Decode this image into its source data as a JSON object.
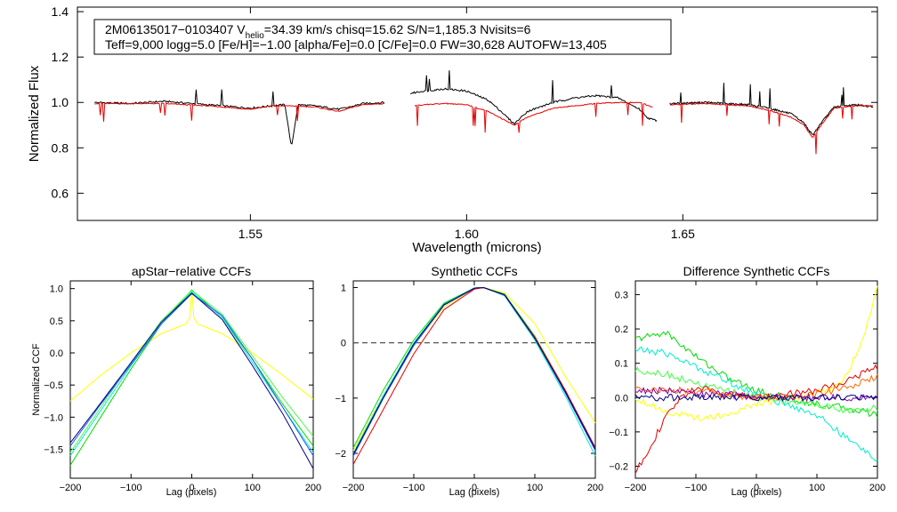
{
  "chart_data": [
    {
      "type": "line",
      "id": "spectrum",
      "title": "",
      "xlabel": "Wavelength (microns)",
      "ylabel": "Normalized Flux",
      "xlim": [
        1.51,
        1.695
      ],
      "ylim": [
        0.48,
        1.42
      ],
      "xticks": [
        1.55,
        1.6,
        1.65
      ],
      "xtick_labels": [
        "1.55",
        "1.60",
        "1.65"
      ],
      "yticks": [
        0.6,
        0.8,
        1.0,
        1.2,
        1.4
      ],
      "ytick_labels": [
        "0.6",
        "0.8",
        "1.0",
        "1.2",
        "1.4"
      ],
      "info_line1_pre": "2M06135017−0103407  V",
      "info_line1_sub": "helio",
      "info_line1_post": "=34.39 km/s  chisq=15.62  S/N=1,185.3  Nvisits=6",
      "info_line2": "Teff=9,000 logg=5.0 [Fe/H]=−1.00 [alpha/Fe]=0.0 [C/Fe]=0.0 FW=30,628 AUTOFW=13,405",
      "series": [
        {
          "name": "observed",
          "color": "#000000",
          "chips": [
            {
              "x": [
                1.514,
                1.522,
                1.53,
                1.54,
                1.55,
                1.555,
                1.558,
                1.5595,
                1.561,
                1.565,
                1.5705,
                1.573,
                1.576,
                1.581
              ],
              "y": [
                1.0,
                0.995,
                1.005,
                0.99,
                0.975,
                0.985,
                0.99,
                0.8,
                0.99,
                0.985,
                0.97,
                0.98,
                0.995,
                1.0
              ]
            },
            {
              "x": [
                1.587,
                1.59,
                1.595,
                1.6,
                1.605,
                1.608,
                1.611,
                1.614,
                1.62,
                1.625,
                1.63,
                1.635,
                1.64,
                1.642,
                1.644
              ],
              "y": [
                1.04,
                1.05,
                1.06,
                1.05,
                1.01,
                0.96,
                0.905,
                0.96,
                1.0,
                1.02,
                1.03,
                1.02,
                0.97,
                0.93,
                0.92
              ]
            },
            {
              "x": [
                1.647,
                1.655,
                1.66,
                1.665,
                1.67,
                1.675,
                1.678,
                1.68,
                1.682,
                1.685,
                1.69,
                1.694
              ],
              "y": [
                0.995,
                1.0,
                0.995,
                0.99,
                0.975,
                0.95,
                0.91,
                0.855,
                0.91,
                0.98,
                0.99,
                0.98
              ]
            }
          ]
        },
        {
          "name": "synthetic",
          "color": "#e60000",
          "chips": [
            {
              "x": [
                1.514,
                1.522,
                1.53,
                1.54,
                1.55,
                1.555,
                1.5595,
                1.565,
                1.5705,
                1.573,
                1.576,
                1.581
              ],
              "y": [
                0.995,
                0.995,
                0.995,
                0.985,
                0.97,
                0.985,
                0.985,
                0.98,
                0.96,
                0.975,
                0.99,
                0.995
              ]
            },
            {
              "x": [
                1.588,
                1.59,
                1.595,
                1.6,
                1.605,
                1.608,
                1.611,
                1.614,
                1.62,
                1.625,
                1.63,
                1.635,
                1.64,
                1.643
              ],
              "y": [
                0.985,
                0.99,
                0.995,
                0.99,
                0.96,
                0.93,
                0.9,
                0.935,
                0.975,
                0.985,
                0.995,
                1.0,
                1.0,
                0.98
              ]
            },
            {
              "x": [
                1.647,
                1.655,
                1.66,
                1.665,
                1.67,
                1.675,
                1.678,
                1.68,
                1.682,
                1.685,
                1.69,
                1.694
              ],
              "y": [
                0.99,
                0.995,
                0.99,
                0.985,
                0.965,
                0.935,
                0.9,
                0.845,
                0.9,
                0.975,
                0.985,
                0.985
              ]
            }
          ]
        }
      ]
    },
    {
      "type": "line",
      "id": "apstar_ccf",
      "title": "apStar−relative CCFs",
      "xlabel": "Lag (pixels)",
      "ylabel": "Normalized CCF",
      "xlim": [
        -200,
        200
      ],
      "ylim": [
        -1.95,
        1.12
      ],
      "xticks": [
        -200,
        -100,
        0,
        100,
        200
      ],
      "xtick_labels": [
        "−200",
        "−100",
        "0",
        "100",
        "200"
      ],
      "yticks": [
        -1.5,
        -1.0,
        -0.5,
        0.0,
        0.5,
        1.0
      ],
      "ytick_labels": [
        "−1.5",
        "−1.0",
        "−0.5",
        "0.0",
        "0.5",
        "1.0"
      ],
      "series": [
        {
          "name": "yellow",
          "color": "#ffff00",
          "x": [
            -200,
            -150,
            -100,
            -50,
            -10,
            -3,
            0,
            3,
            10,
            50,
            100,
            150,
            200
          ],
          "y": [
            -0.75,
            -0.35,
            0.0,
            0.3,
            0.45,
            0.55,
            0.98,
            0.55,
            0.45,
            0.3,
            0.0,
            -0.35,
            -0.72
          ]
        },
        {
          "name": "green",
          "color": "#00dd00",
          "x": [
            -200,
            -150,
            -100,
            -50,
            0,
            50,
            100,
            150,
            200
          ],
          "y": [
            -1.75,
            -1.0,
            -0.25,
            0.45,
            0.98,
            0.55,
            -0.1,
            -0.8,
            -1.45
          ]
        },
        {
          "name": "light-green",
          "color": "#44ff44",
          "x": [
            -200,
            -150,
            -100,
            -50,
            0,
            50,
            100,
            150,
            200
          ],
          "y": [
            -1.55,
            -0.85,
            -0.15,
            0.5,
            0.97,
            0.6,
            -0.05,
            -0.7,
            -1.3
          ]
        },
        {
          "name": "cyan",
          "color": "#00eecc",
          "x": [
            -200,
            -150,
            -100,
            -50,
            0,
            50,
            100,
            150,
            200
          ],
          "y": [
            -1.6,
            -0.9,
            -0.2,
            0.45,
            0.95,
            0.55,
            -0.15,
            -0.85,
            -1.55
          ]
        },
        {
          "name": "blue",
          "color": "#2255ff",
          "x": [
            -200,
            -150,
            -100,
            -50,
            0,
            50,
            100,
            150,
            200
          ],
          "y": [
            -1.45,
            -0.8,
            -0.18,
            0.45,
            0.92,
            0.58,
            -0.1,
            -0.85,
            -1.6
          ]
        },
        {
          "name": "navy",
          "color": "#000080",
          "x": [
            -200,
            -150,
            -100,
            -50,
            0,
            50,
            100,
            150,
            200
          ],
          "y": [
            -1.4,
            -0.78,
            -0.15,
            0.48,
            0.93,
            0.52,
            -0.2,
            -0.95,
            -1.8
          ]
        }
      ]
    },
    {
      "type": "line",
      "id": "synthetic_ccf",
      "title": "Synthetic CCFs",
      "xlabel": "Lag (pixels)",
      "ylabel": "",
      "xlim": [
        -200,
        200
      ],
      "ylim": [
        -2.45,
        1.12
      ],
      "xticks": [
        -200,
        -100,
        0,
        100,
        200
      ],
      "xtick_labels": [
        "−200",
        "−100",
        "0",
        "100",
        "200"
      ],
      "yticks": [
        -2,
        -1,
        0,
        1
      ],
      "ytick_labels": [
        "−2",
        "−1",
        "0",
        "1"
      ],
      "reference_line": {
        "y": 0,
        "color": "#555555",
        "style": "dashed"
      },
      "series": [
        {
          "name": "yellow",
          "color": "#ffff00",
          "x": [
            -200,
            -150,
            -100,
            -50,
            0,
            15,
            50,
            100,
            150,
            200
          ],
          "y": [
            -1.95,
            -0.95,
            -0.05,
            0.65,
            0.98,
            1.0,
            0.9,
            0.35,
            -0.6,
            -1.45
          ]
        },
        {
          "name": "green",
          "color": "#00dd00",
          "x": [
            -200,
            -150,
            -100,
            -50,
            0,
            15,
            50,
            100,
            150,
            200
          ],
          "y": [
            -1.9,
            -0.85,
            0.05,
            0.72,
            0.99,
            1.0,
            0.88,
            0.12,
            -0.85,
            -1.9
          ]
        },
        {
          "name": "cyan",
          "color": "#00eecc",
          "x": [
            -200,
            -150,
            -100,
            -50,
            0,
            15,
            50,
            100,
            150,
            200
          ],
          "y": [
            -2.0,
            -0.95,
            0.0,
            0.7,
            0.99,
            1.0,
            0.85,
            0.05,
            -0.95,
            -2.05
          ]
        },
        {
          "name": "blue",
          "color": "#2255ff",
          "x": [
            -200,
            -150,
            -100,
            -50,
            0,
            15,
            50,
            100,
            150,
            200
          ],
          "y": [
            -2.05,
            -1.0,
            -0.05,
            0.68,
            0.98,
            1.0,
            0.86,
            0.08,
            -0.9,
            -1.95
          ]
        },
        {
          "name": "red",
          "color": "#e60000",
          "x": [
            -200,
            -150,
            -100,
            -50,
            0,
            15,
            50,
            100,
            150,
            200
          ],
          "y": [
            -2.2,
            -1.2,
            -0.2,
            0.6,
            0.97,
            1.0,
            0.87,
            0.1,
            -0.85,
            -1.9
          ]
        },
        {
          "name": "navy",
          "color": "#000080",
          "x": [
            -200,
            -150,
            -100,
            -50,
            0,
            15,
            50,
            100,
            150,
            200
          ],
          "y": [
            -2.02,
            -0.98,
            -0.02,
            0.69,
            0.99,
            1.0,
            0.87,
            0.08,
            -0.88,
            -1.92
          ]
        }
      ]
    },
    {
      "type": "line",
      "id": "difference_ccf",
      "title": "Difference Synthetic CCFs",
      "xlabel": "Lag (pixels)",
      "ylabel": "",
      "xlim": [
        -200,
        200
      ],
      "ylim": [
        -0.235,
        0.34
      ],
      "xticks": [
        -200,
        -100,
        0,
        100,
        200
      ],
      "xtick_labels": [
        "−200",
        "−100",
        "0",
        "100",
        "200"
      ],
      "yticks": [
        -0.2,
        -0.1,
        0.0,
        0.1,
        0.2,
        0.3
      ],
      "ytick_labels": [
        "−0.2",
        "−0.1",
        "0.0",
        "0.1",
        "0.2",
        "0.3"
      ],
      "series": [
        {
          "name": "yellow",
          "color": "#ffff00",
          "x": [
            -200,
            -150,
            -100,
            -50,
            0,
            50,
            100,
            130,
            150,
            175,
            200
          ],
          "y": [
            0.0,
            -0.04,
            -0.06,
            -0.05,
            -0.02,
            0.0,
            0.01,
            0.03,
            0.07,
            0.17,
            0.32
          ]
        },
        {
          "name": "green",
          "color": "#00dd00",
          "x": [
            -200,
            -150,
            -100,
            -50,
            0,
            50,
            100,
            150,
            200
          ],
          "y": [
            0.17,
            0.19,
            0.12,
            0.06,
            0.02,
            0.0,
            -0.02,
            -0.03,
            -0.05
          ]
        },
        {
          "name": "light-green",
          "color": "#44ff44",
          "x": [
            -200,
            -150,
            -100,
            -50,
            0,
            50,
            100,
            150,
            200
          ],
          "y": [
            0.08,
            0.07,
            0.04,
            0.02,
            0.0,
            -0.01,
            -0.02,
            -0.04,
            -0.03
          ]
        },
        {
          "name": "cyan",
          "color": "#00eecc",
          "x": [
            -200,
            -150,
            -100,
            -50,
            0,
            50,
            100,
            150,
            200
          ],
          "y": [
            0.14,
            0.13,
            0.09,
            0.05,
            0.01,
            -0.02,
            -0.05,
            -0.12,
            -0.18
          ]
        },
        {
          "name": "red",
          "color": "#e60000",
          "x": [
            -200,
            -175,
            -150,
            -125,
            -100,
            -50,
            0,
            50,
            100,
            150,
            200
          ],
          "y": [
            -0.22,
            -0.14,
            -0.06,
            0.0,
            0.03,
            0.01,
            0.0,
            0.01,
            0.02,
            0.05,
            0.09
          ]
        },
        {
          "name": "orange",
          "color": "#ff6600",
          "x": [
            -200,
            -150,
            -100,
            -50,
            0,
            50,
            100,
            150,
            200
          ],
          "y": [
            0.03,
            0.02,
            0.02,
            0.01,
            0.0,
            0.0,
            0.01,
            0.03,
            0.06
          ]
        },
        {
          "name": "purple",
          "color": "#8800aa",
          "x": [
            -200,
            -150,
            -100,
            -50,
            0,
            50,
            100,
            150,
            200
          ],
          "y": [
            0.02,
            0.02,
            0.01,
            0.01,
            0.0,
            0.0,
            0.0,
            0.0,
            0.0
          ]
        },
        {
          "name": "navy",
          "color": "#000080",
          "x": [
            -200,
            200
          ],
          "y": [
            0.0,
            0.0
          ]
        }
      ]
    }
  ]
}
